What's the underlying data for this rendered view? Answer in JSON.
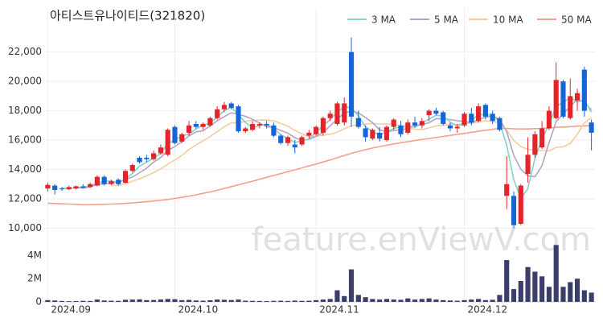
{
  "chart_data": [
    {
      "type": "candlestick",
      "title": "아티스트유나이티드(321820)",
      "watermark": "feature.enViewV.com",
      "up_color": "#e8222b",
      "down_color": "#1565d8",
      "categories": [
        "2024.09",
        null,
        null,
        null,
        null,
        null,
        null,
        null,
        null,
        null,
        null,
        null,
        null,
        null,
        null,
        null,
        null,
        null,
        "2024.10",
        null,
        null,
        null,
        null,
        null,
        null,
        null,
        null,
        null,
        null,
        null,
        null,
        null,
        null,
        null,
        null,
        null,
        null,
        null,
        "2024.11",
        null,
        null,
        null,
        null,
        null,
        null,
        null,
        null,
        null,
        null,
        null,
        null,
        null,
        null,
        null,
        null,
        null,
        null,
        null,
        null,
        "2024.12",
        null,
        null,
        null,
        null,
        null,
        null,
        null,
        null,
        null,
        null,
        null,
        null,
        null,
        null,
        null,
        null,
        null,
        null
      ],
      "open": [
        12700,
        12900,
        12700,
        12650,
        12700,
        12850,
        12800,
        12900,
        13500,
        13000,
        13300,
        13100,
        13900,
        14800,
        14800,
        14700,
        15100,
        15000,
        16900,
        15900,
        16500,
        17100,
        16900,
        17000,
        17500,
        18100,
        18500,
        18300,
        16600,
        16700,
        17000,
        17100,
        17000,
        16300,
        15800,
        15700,
        15700,
        16300,
        16400,
        16500,
        17500,
        17100,
        17200,
        22000,
        17500,
        16800,
        16100,
        16500,
        16000,
        16900,
        17000,
        16500,
        17200,
        17000,
        17700,
        18000,
        17900,
        17000,
        16800,
        17000,
        17800,
        17300,
        18400,
        17800,
        17500,
        12200,
        12200,
        10300,
        13700,
        15000,
        15500,
        16800,
        17500,
        20000,
        17500,
        18700,
        20800,
        17200
      ],
      "high": [
        13100,
        13000,
        12800,
        12900,
        12900,
        13000,
        13100,
        13600,
        13600,
        13300,
        13400,
        14000,
        14400,
        14900,
        15000,
        15300,
        15700,
        16800,
        17000,
        16500,
        17300,
        17300,
        17200,
        17600,
        18300,
        18600,
        18600,
        18400,
        16900,
        17300,
        17200,
        17300,
        17200,
        16400,
        16300,
        16000,
        16300,
        16700,
        17000,
        17600,
        18000,
        18600,
        18900,
        23000,
        18000,
        17000,
        16800,
        16900,
        17000,
        17500,
        17300,
        17400,
        17600,
        17500,
        18100,
        18200,
        18000,
        17200,
        17100,
        17900,
        18200,
        18500,
        18500,
        18000,
        17600,
        14900,
        12500,
        13000,
        16200,
        16600,
        17300,
        18300,
        21300,
        20100,
        20200,
        19500,
        21000,
        17400
      ],
      "low": [
        12500,
        12300,
        12550,
        12600,
        12650,
        12700,
        12750,
        12850,
        12900,
        12950,
        12900,
        13050,
        13800,
        14400,
        14500,
        14600,
        15000,
        14900,
        15700,
        15800,
        16300,
        16800,
        16700,
        16900,
        17400,
        17900,
        18100,
        16500,
        16500,
        16600,
        16800,
        16800,
        16200,
        15700,
        15600,
        15100,
        15600,
        16100,
        16300,
        16300,
        17300,
        17000,
        17000,
        16900,
        16800,
        15900,
        16000,
        15900,
        15900,
        16700,
        16200,
        16400,
        16900,
        16800,
        17300,
        17700,
        17000,
        16600,
        16500,
        16900,
        17000,
        17200,
        17400,
        17100,
        16600,
        11300,
        10000,
        10200,
        13100,
        14800,
        15400,
        16700,
        17400,
        17500,
        17400,
        18000,
        17600,
        15300
      ],
      "close": [
        12950,
        12600,
        12650,
        12800,
        12850,
        12750,
        13000,
        13500,
        13000,
        13200,
        13000,
        13900,
        14300,
        14500,
        14700,
        15100,
        15500,
        16700,
        15800,
        16400,
        17000,
        16900,
        17100,
        17500,
        18100,
        18400,
        18200,
        16600,
        16800,
        17100,
        17100,
        17000,
        16300,
        15800,
        16200,
        15500,
        16200,
        16500,
        16900,
        17500,
        17800,
        18500,
        18500,
        17600,
        16900,
        16200,
        16700,
        16100,
        16900,
        17400,
        16400,
        17200,
        17000,
        17300,
        18000,
        17800,
        17100,
        16800,
        16900,
        17800,
        17200,
        18300,
        17600,
        17300,
        16700,
        13000,
        10200,
        12900,
        15000,
        16400,
        16800,
        18000,
        20100,
        17600,
        19000,
        19200,
        18000,
        16500
      ],
      "series": [
        {
          "name": "3 MA",
          "color": "#7fd3c9",
          "values": [
            null,
            null,
            12733,
            12683,
            12767,
            12800,
            12867,
            13083,
            13167,
            13233,
            13067,
            13367,
            13733,
            14233,
            14500,
            14767,
            15100,
            15767,
            16000,
            16300,
            16400,
            16767,
            17000,
            17167,
            17567,
            18000,
            18233,
            17733,
            17200,
            16833,
            17000,
            17067,
            16800,
            16367,
            16100,
            15833,
            15967,
            16067,
            16533,
            16967,
            17400,
            17933,
            18267,
            18200,
            17667,
            16900,
            16600,
            16333,
            16567,
            16800,
            16900,
            17000,
            16867,
            17167,
            17433,
            17700,
            17633,
            17233,
            16933,
            17167,
            17300,
            17767,
            17700,
            17733,
            17200,
            15667,
            13300,
            12033,
            12700,
            14767,
            16067,
            17067,
            18300,
            18567,
            18900,
            18600,
            18733,
            17900
          ]
        },
        {
          "name": "5 MA",
          "color": "#b4a3c6",
          "values": [
            null,
            null,
            null,
            null,
            12770,
            12730,
            12810,
            12980,
            13020,
            13090,
            13140,
            13320,
            13480,
            13780,
            14080,
            14500,
            14820,
            15300,
            15560,
            15900,
            16280,
            16560,
            16640,
            16980,
            17320,
            17600,
            17860,
            17760,
            17620,
            17420,
            17160,
            16920,
            16860,
            16660,
            16480,
            16160,
            16000,
            16040,
            16260,
            16520,
            16980,
            17440,
            17840,
            17980,
            17860,
            17540,
            17180,
            16700,
            16560,
            16660,
            16700,
            16800,
            16980,
            17060,
            17180,
            17460,
            17440,
            17400,
            17320,
            17280,
            17160,
            17420,
            17560,
            17640,
            17420,
            16580,
            14960,
            14020,
            13560,
            13500,
            14260,
            15820,
            17260,
            17780,
            18300,
            18780,
            18580,
            18060
          ]
        },
        {
          "name": "10 MA",
          "color": "#f5cc9e",
          "values": [
            null,
            null,
            null,
            null,
            null,
            null,
            null,
            null,
            null,
            12900,
            12905,
            13035,
            13200,
            13370,
            13555,
            13790,
            14040,
            14360,
            14640,
            14960,
            15360,
            15660,
            15940,
            16240,
            16580,
            16910,
            17180,
            17170,
            17280,
            17350,
            17360,
            17370,
            17310,
            17140,
            16950,
            16660,
            16430,
            16230,
            16260,
            16330,
            16400,
            16550,
            16770,
            16980,
            17050,
            17090,
            17140,
            17100,
            17100,
            17090,
            16950,
            16820,
            16750,
            16720,
            16830,
            16970,
            17010,
            17080,
            17080,
            17120,
            17150,
            17250,
            17310,
            17280,
            17150,
            16670,
            15990,
            15560,
            15370,
            15300,
            15290,
            15260,
            15510,
            15540,
            15770,
            16390,
            17170,
            17530
          ]
        },
        {
          "name": "50 MA",
          "color": "#f4a08b",
          "values": [
            11700,
            11680,
            11660,
            11640,
            11620,
            11600,
            11600,
            11610,
            11620,
            11640,
            11660,
            11690,
            11720,
            11760,
            11800,
            11850,
            11900,
            11960,
            12030,
            12100,
            12180,
            12270,
            12370,
            12470,
            12580,
            12700,
            12830,
            12950,
            13080,
            13200,
            13330,
            13460,
            13590,
            13720,
            13850,
            13980,
            14110,
            14240,
            14370,
            14510,
            14650,
            14800,
            14950,
            15100,
            15230,
            15350,
            15460,
            15560,
            15650,
            15740,
            15820,
            15900,
            15970,
            16040,
            16110,
            16180,
            16250,
            16320,
            16390,
            16460,
            16530,
            16600,
            16670,
            16740,
            16800,
            16800,
            16770,
            16760,
            16760,
            16780,
            16800,
            16830,
            16870,
            16890,
            16920,
            16950,
            16970,
            16990
          ]
        }
      ],
      "ylim": [
        9200,
        25000
      ],
      "yticks": [
        {
          "value": 10000,
          "label": "10,000"
        },
        {
          "value": 12000,
          "label": "12,000"
        },
        {
          "value": 14000,
          "label": "14,000"
        },
        {
          "value": 16000,
          "label": "16,000"
        },
        {
          "value": 18000,
          "label": "18,000"
        },
        {
          "value": 20000,
          "label": "20,000"
        },
        {
          "value": 22000,
          "label": "22,000"
        }
      ],
      "legend": "top-right",
      "grid": true
    },
    {
      "type": "bar",
      "color": "#3b3d6b",
      "values": [
        150000,
        120000,
        80000,
        60000,
        70000,
        90000,
        80000,
        200000,
        120000,
        100000,
        90000,
        180000,
        200000,
        220000,
        150000,
        160000,
        200000,
        250000,
        230000,
        150000,
        170000,
        120000,
        100000,
        140000,
        200000,
        180000,
        160000,
        200000,
        100000,
        90000,
        80000,
        70000,
        90000,
        100000,
        80000,
        110000,
        90000,
        100000,
        150000,
        200000,
        250000,
        1000000,
        500000,
        2800000,
        600000,
        400000,
        250000,
        200000,
        250000,
        200000,
        180000,
        300000,
        200000,
        250000,
        300000,
        200000,
        150000,
        120000,
        100000,
        150000,
        200000,
        250000,
        150000,
        180000,
        600000,
        3600000,
        1100000,
        1800000,
        3000000,
        2600000,
        2200000,
        1300000,
        4900000,
        1300000,
        1700000,
        2000000,
        1000000,
        800000
      ],
      "ylim": [
        0,
        5200000
      ],
      "yticks": [
        0,
        {
          "value": 2000000,
          "label": "2M"
        },
        {
          "value": 4000000,
          "label": "4M"
        }
      ]
    }
  ]
}
